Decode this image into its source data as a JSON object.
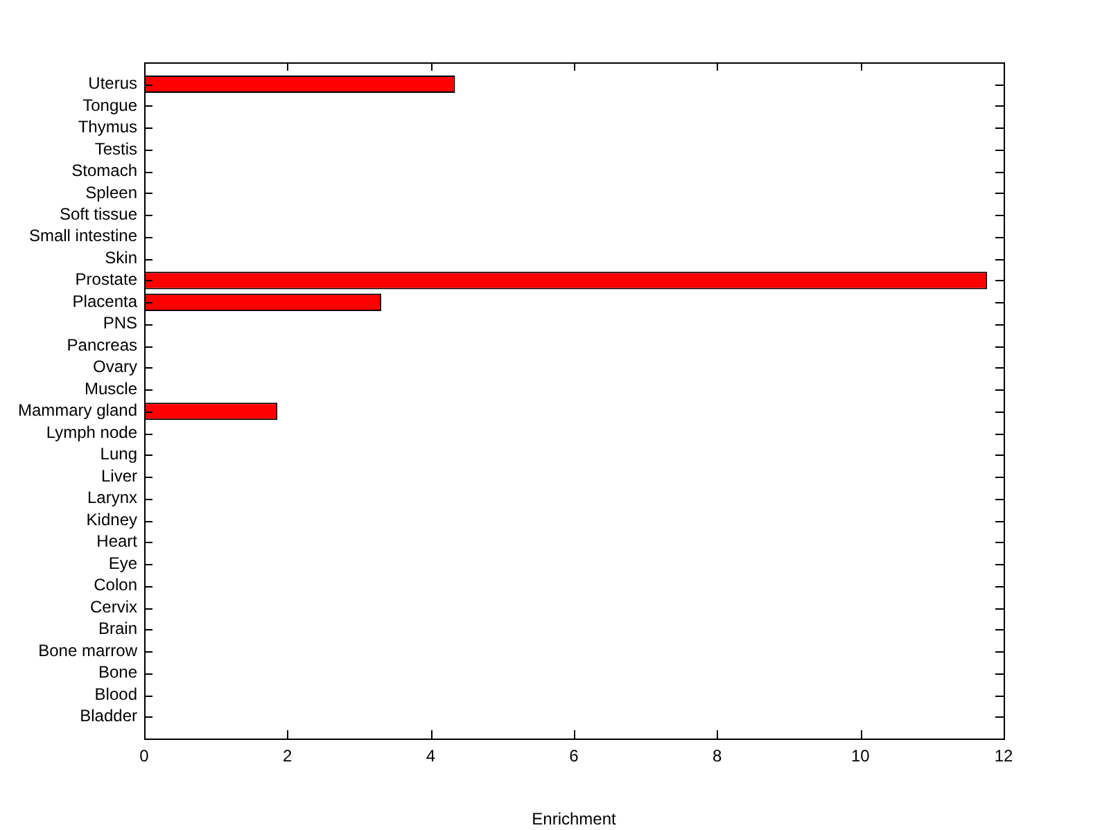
{
  "chart_data": {
    "type": "bar",
    "orientation": "horizontal",
    "xlabel": "Enrichment",
    "categories": [
      "Uterus",
      "Tongue",
      "Thymus",
      "Testis",
      "Stomach",
      "Spleen",
      "Soft tissue",
      "Small intestine",
      "Skin",
      "Prostate",
      "Placenta",
      "PNS",
      "Pancreas",
      "Ovary",
      "Muscle",
      "Mammary gland",
      "Lymph node",
      "Lung",
      "Liver",
      "Larynx",
      "Kidney",
      "Heart",
      "Eye",
      "Colon",
      "Cervix",
      "Brain",
      "Bone marrow",
      "Bone",
      "Blood",
      "Bladder"
    ],
    "values": [
      4.34,
      0,
      0,
      0,
      0,
      0,
      0,
      0,
      0,
      11.77,
      3.31,
      0,
      0,
      0,
      0,
      1.86,
      0,
      0,
      0,
      0,
      0,
      0,
      0,
      0,
      0,
      0,
      0,
      0,
      0,
      0
    ],
    "color": "#ff0000",
    "xlim": [
      0,
      12
    ],
    "xticks": [
      0,
      2,
      4,
      6,
      8,
      10,
      12
    ]
  }
}
